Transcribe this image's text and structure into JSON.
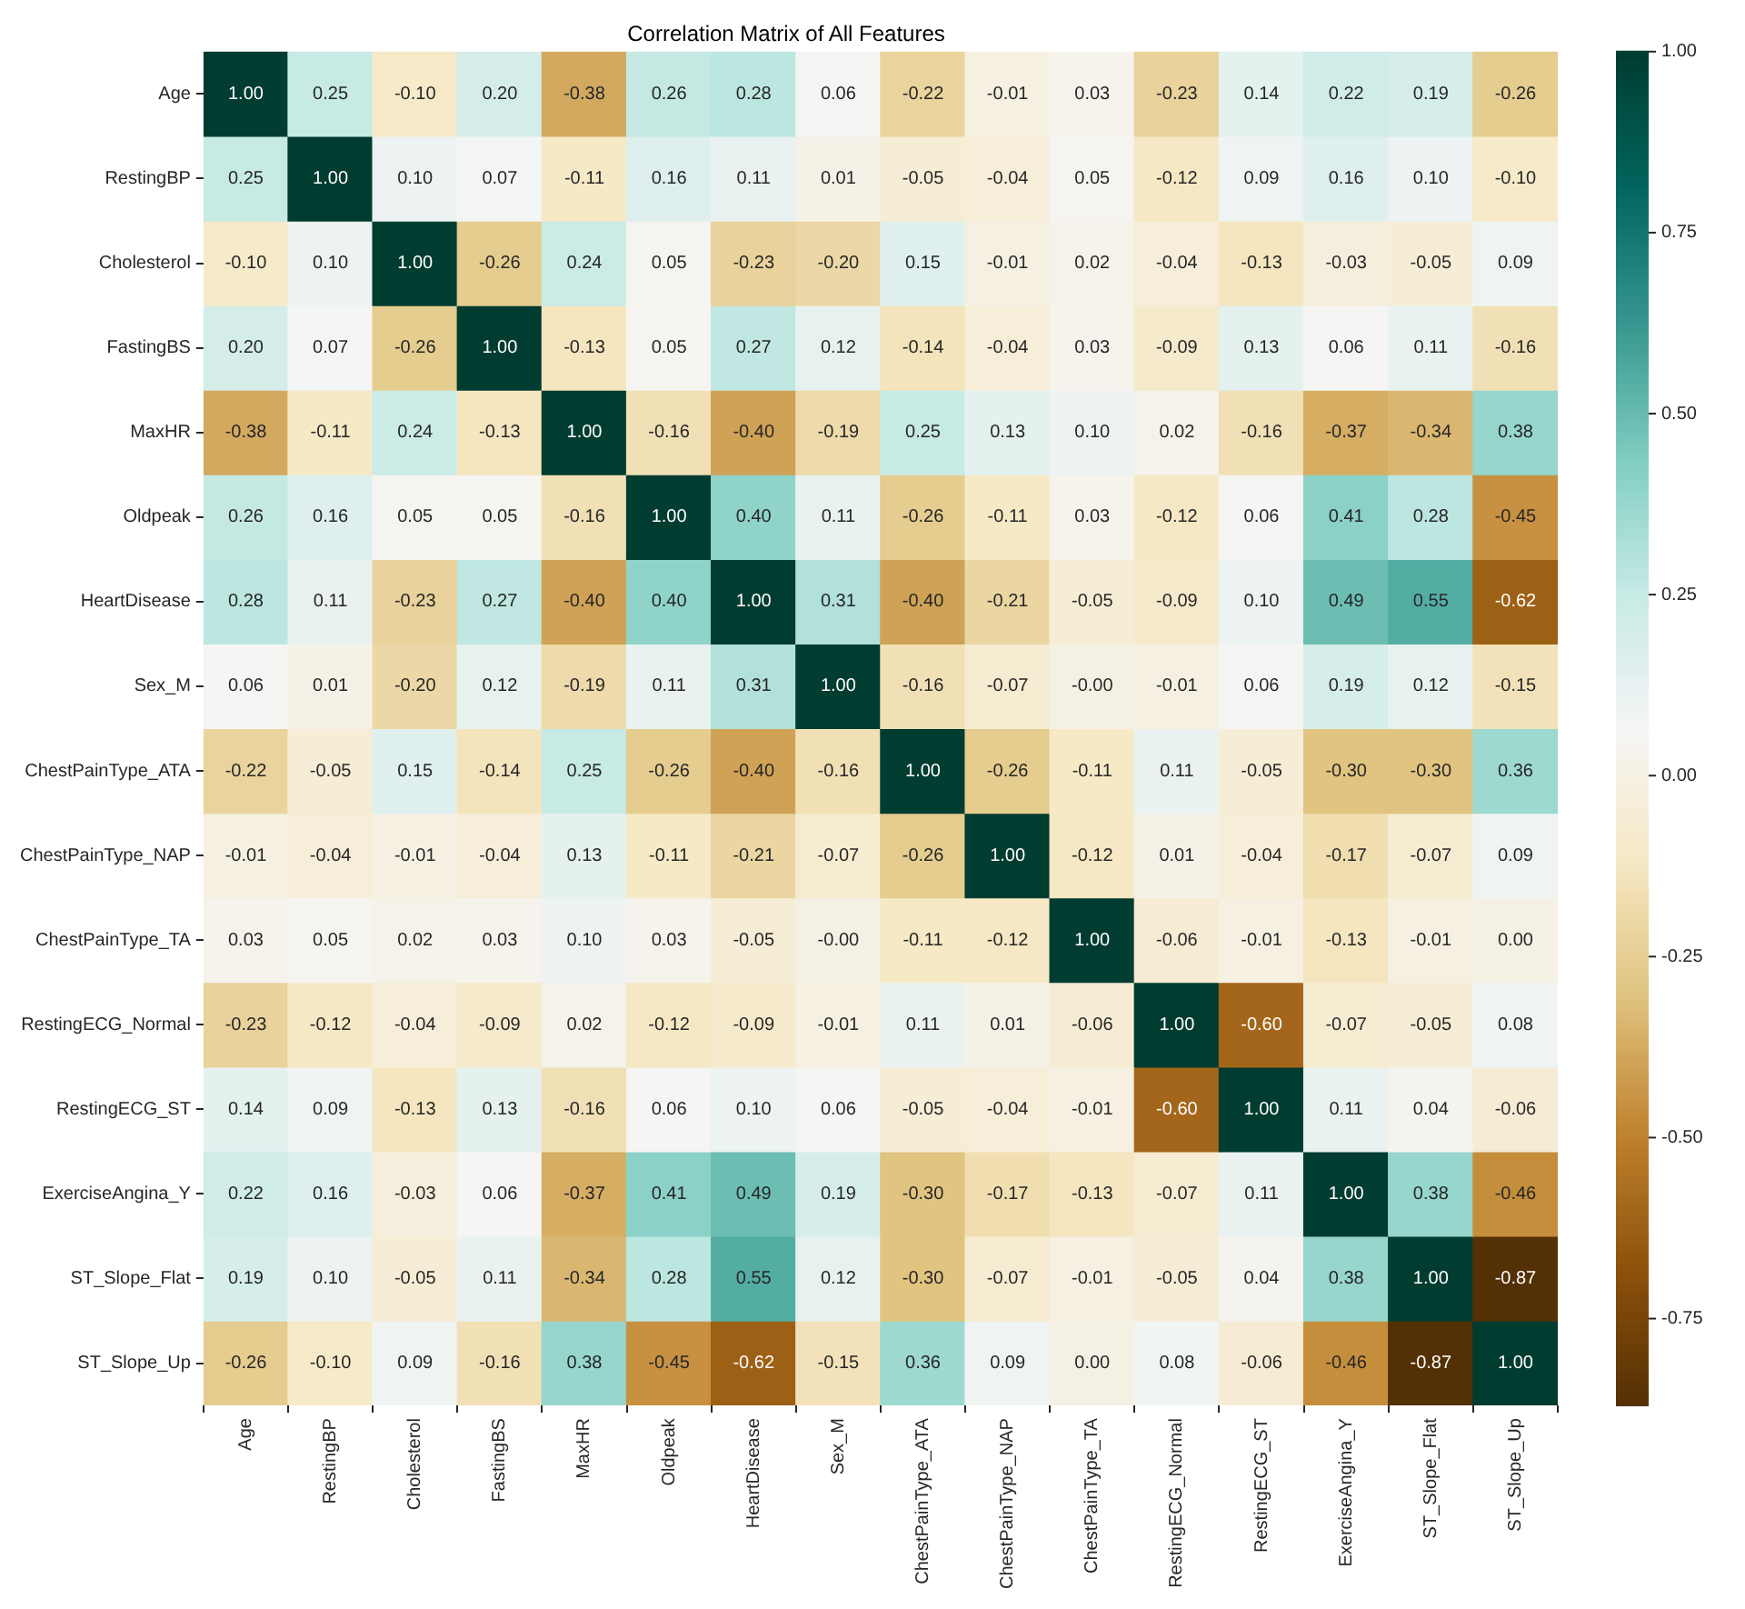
{
  "chart_data": {
    "type": "heatmap",
    "title": "Correlation Matrix of All Features",
    "categories": [
      "Age",
      "RestingBP",
      "Cholesterol",
      "FastingBS",
      "MaxHR",
      "Oldpeak",
      "HeartDisease",
      "Sex_M",
      "ChestPainType_ATA",
      "ChestPainType_NAP",
      "ChestPainType_TA",
      "RestingECG_Normal",
      "RestingECG_ST",
      "ExerciseAngina_Y",
      "ST_Slope_Flat",
      "ST_Slope_Up"
    ],
    "y_categories": [
      "Age",
      "RestingBP",
      "Cholesterol",
      "FastingBS",
      "MaxHR",
      "Oldpeak",
      "HeartDisease",
      "Sex_M",
      "ChestPainType_ATA",
      "ChestPainType_NAP",
      "ChestPainType_TA",
      "RestingECG_Normal",
      "RestingECG_ST",
      "ExerciseAngina_Y",
      "ST_Slope_Flat",
      "ST_Slope_Up"
    ],
    "cells": [
      [
        1.0,
        0.25,
        -0.1,
        0.2,
        -0.38,
        0.26,
        0.28,
        0.06,
        -0.22,
        -0.01,
        0.03,
        -0.23,
        0.14,
        0.22,
        0.19,
        -0.26
      ],
      [
        0.25,
        1.0,
        0.1,
        0.07,
        -0.11,
        0.16,
        0.11,
        0.01,
        -0.05,
        -0.04,
        0.05,
        -0.12,
        0.09,
        0.16,
        0.1,
        -0.1
      ],
      [
        -0.1,
        0.1,
        1.0,
        -0.26,
        0.24,
        0.05,
        -0.23,
        -0.2,
        0.15,
        -0.01,
        0.02,
        -0.04,
        -0.13,
        -0.03,
        -0.05,
        0.09
      ],
      [
        0.2,
        0.07,
        -0.26,
        1.0,
        -0.13,
        0.05,
        0.27,
        0.12,
        -0.14,
        -0.04,
        0.03,
        -0.09,
        0.13,
        0.06,
        0.11,
        -0.16
      ],
      [
        -0.38,
        -0.11,
        0.24,
        -0.13,
        1.0,
        -0.16,
        -0.4,
        -0.19,
        0.25,
        0.13,
        0.1,
        0.02,
        -0.16,
        -0.37,
        -0.34,
        0.38
      ],
      [
        0.26,
        0.16,
        0.05,
        0.05,
        -0.16,
        1.0,
        0.4,
        0.11,
        -0.26,
        -0.11,
        0.03,
        -0.12,
        0.06,
        0.41,
        0.28,
        -0.45
      ],
      [
        0.28,
        0.11,
        -0.23,
        0.27,
        -0.4,
        0.4,
        1.0,
        0.31,
        -0.4,
        -0.21,
        -0.05,
        -0.09,
        0.1,
        0.49,
        0.55,
        -0.62
      ],
      [
        0.06,
        0.01,
        -0.2,
        0.12,
        -0.19,
        0.11,
        0.31,
        1.0,
        -0.16,
        -0.07,
        -0.0,
        -0.01,
        0.06,
        0.19,
        0.12,
        -0.15
      ],
      [
        -0.22,
        -0.05,
        0.15,
        -0.14,
        0.25,
        -0.26,
        -0.4,
        -0.16,
        1.0,
        -0.26,
        -0.11,
        0.11,
        -0.05,
        -0.3,
        -0.3,
        0.36
      ],
      [
        -0.01,
        -0.04,
        -0.01,
        -0.04,
        0.13,
        -0.11,
        -0.21,
        -0.07,
        -0.26,
        1.0,
        -0.12,
        0.01,
        -0.04,
        -0.17,
        -0.07,
        0.09
      ],
      [
        0.03,
        0.05,
        0.02,
        0.03,
        0.1,
        0.03,
        -0.05,
        -0.0,
        -0.11,
        -0.12,
        1.0,
        -0.06,
        -0.01,
        -0.13,
        -0.01,
        0.0
      ],
      [
        -0.23,
        -0.12,
        -0.04,
        -0.09,
        0.02,
        -0.12,
        -0.09,
        -0.01,
        0.11,
        0.01,
        -0.06,
        1.0,
        -0.6,
        -0.07,
        -0.05,
        0.08
      ],
      [
        0.14,
        0.09,
        -0.13,
        0.13,
        -0.16,
        0.06,
        0.1,
        0.06,
        -0.05,
        -0.04,
        -0.01,
        -0.6,
        1.0,
        0.11,
        0.04,
        -0.06
      ],
      [
        0.22,
        0.16,
        -0.03,
        0.06,
        -0.37,
        0.41,
        0.49,
        0.19,
        -0.3,
        -0.17,
        -0.13,
        -0.07,
        0.11,
        1.0,
        0.38,
        -0.46
      ],
      [
        0.19,
        0.1,
        -0.05,
        0.11,
        -0.34,
        0.28,
        0.55,
        0.12,
        -0.3,
        -0.07,
        -0.01,
        -0.05,
        0.04,
        0.38,
        1.0,
        -0.87
      ],
      [
        -0.26,
        -0.1,
        0.09,
        -0.16,
        0.38,
        -0.45,
        -0.62,
        -0.15,
        0.36,
        0.09,
        0.0,
        0.08,
        -0.06,
        -0.46,
        -0.87,
        1.0
      ]
    ],
    "cell_labels": [
      [
        "1.00",
        "0.25",
        "-0.10",
        "0.20",
        "-0.38",
        "0.26",
        "0.28",
        "0.06",
        "-0.22",
        "-0.01",
        "0.03",
        "-0.23",
        "0.14",
        "0.22",
        "0.19",
        "-0.26"
      ],
      [
        "0.25",
        "1.00",
        "0.10",
        "0.07",
        "-0.11",
        "0.16",
        "0.11",
        "0.01",
        "-0.05",
        "-0.04",
        "0.05",
        "-0.12",
        "0.09",
        "0.16",
        "0.10",
        "-0.10"
      ],
      [
        "-0.10",
        "0.10",
        "1.00",
        "-0.26",
        "0.24",
        "0.05",
        "-0.23",
        "-0.20",
        "0.15",
        "-0.01",
        "0.02",
        "-0.04",
        "-0.13",
        "-0.03",
        "-0.05",
        "0.09"
      ],
      [
        "0.20",
        "0.07",
        "-0.26",
        "1.00",
        "-0.13",
        "0.05",
        "0.27",
        "0.12",
        "-0.14",
        "-0.04",
        "0.03",
        "-0.09",
        "0.13",
        "0.06",
        "0.11",
        "-0.16"
      ],
      [
        "-0.38",
        "-0.11",
        "0.24",
        "-0.13",
        "1.00",
        "-0.16",
        "-0.40",
        "-0.19",
        "0.25",
        "0.13",
        "0.10",
        "0.02",
        "-0.16",
        "-0.37",
        "-0.34",
        "0.38"
      ],
      [
        "0.26",
        "0.16",
        "0.05",
        "0.05",
        "-0.16",
        "1.00",
        "0.40",
        "0.11",
        "-0.26",
        "-0.11",
        "0.03",
        "-0.12",
        "0.06",
        "0.41",
        "0.28",
        "-0.45"
      ],
      [
        "0.28",
        "0.11",
        "-0.23",
        "0.27",
        "-0.40",
        "0.40",
        "1.00",
        "0.31",
        "-0.40",
        "-0.21",
        "-0.05",
        "-0.09",
        "0.10",
        "0.49",
        "0.55",
        "-0.62"
      ],
      [
        "0.06",
        "0.01",
        "-0.20",
        "0.12",
        "-0.19",
        "0.11",
        "0.31",
        "1.00",
        "-0.16",
        "-0.07",
        "-0.00",
        "-0.01",
        "0.06",
        "0.19",
        "0.12",
        "-0.15"
      ],
      [
        "-0.22",
        "-0.05",
        "0.15",
        "-0.14",
        "0.25",
        "-0.26",
        "-0.40",
        "-0.16",
        "1.00",
        "-0.26",
        "-0.11",
        "0.11",
        "-0.05",
        "-0.30",
        "-0.30",
        "0.36"
      ],
      [
        "-0.01",
        "-0.04",
        "-0.01",
        "-0.04",
        "0.13",
        "-0.11",
        "-0.21",
        "-0.07",
        "-0.26",
        "1.00",
        "-0.12",
        "0.01",
        "-0.04",
        "-0.17",
        "-0.07",
        "0.09"
      ],
      [
        "0.03",
        "0.05",
        "0.02",
        "0.03",
        "0.10",
        "0.03",
        "-0.05",
        "-0.00",
        "-0.11",
        "-0.12",
        "1.00",
        "-0.06",
        "-0.01",
        "-0.13",
        "-0.01",
        "0.00"
      ],
      [
        "-0.23",
        "-0.12",
        "-0.04",
        "-0.09",
        "0.02",
        "-0.12",
        "-0.09",
        "-0.01",
        "0.11",
        "0.01",
        "-0.06",
        "1.00",
        "-0.60",
        "-0.07",
        "-0.05",
        "0.08"
      ],
      [
        "0.14",
        "0.09",
        "-0.13",
        "0.13",
        "-0.16",
        "0.06",
        "0.10",
        "0.06",
        "-0.05",
        "-0.04",
        "-0.01",
        "-0.60",
        "1.00",
        "0.11",
        "0.04",
        "-0.06"
      ],
      [
        "0.22",
        "0.16",
        "-0.03",
        "0.06",
        "-0.37",
        "0.41",
        "0.49",
        "0.19",
        "-0.30",
        "-0.17",
        "-0.13",
        "-0.07",
        "0.11",
        "1.00",
        "0.38",
        "-0.46"
      ],
      [
        "0.19",
        "0.10",
        "-0.05",
        "0.11",
        "-0.34",
        "0.28",
        "0.55",
        "0.12",
        "-0.30",
        "-0.07",
        "-0.01",
        "-0.05",
        "0.04",
        "0.38",
        "1.00",
        "-0.87"
      ],
      [
        "-0.26",
        "-0.10",
        "0.09",
        "-0.16",
        "0.38",
        "-0.45",
        "-0.62",
        "-0.15",
        "0.36",
        "0.09",
        "0.00",
        "0.08",
        "-0.06",
        "-0.46",
        "-0.87",
        "1.00"
      ]
    ],
    "clim": [
      -0.87,
      1.0
    ],
    "cticks": [
      {
        "value": -0.75,
        "label": "-0.75"
      },
      {
        "value": -0.5,
        "label": "-0.50"
      },
      {
        "value": -0.25,
        "label": "-0.25"
      },
      {
        "value": 0,
        "label": "0.00"
      },
      {
        "value": 0.25,
        "label": "0.25"
      },
      {
        "value": 0.5,
        "label": "0.50"
      },
      {
        "value": 0.75,
        "label": "0.75"
      },
      {
        "value": 1,
        "label": "1.00"
      }
    ],
    "data_labels": true
  }
}
